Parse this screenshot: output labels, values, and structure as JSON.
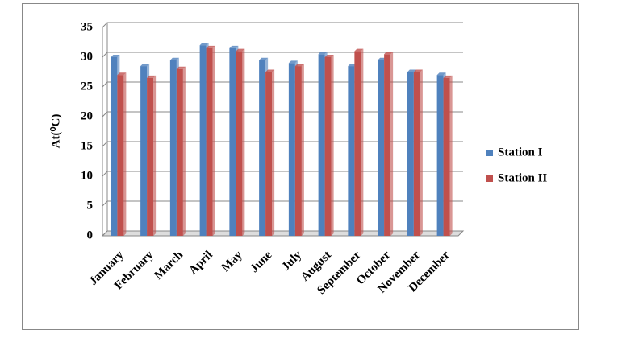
{
  "chart_data": {
    "type": "bar",
    "y_label": "At(⁰C)",
    "categories": [
      "January",
      "February",
      "March",
      "April",
      "May",
      "June",
      "July",
      "August",
      "September",
      "October",
      "November",
      "December"
    ],
    "series": [
      {
        "name": "Station I",
        "color": "#4f81bd",
        "values": [
          30,
          28.5,
          29.5,
          32,
          31.5,
          29.5,
          29,
          30.5,
          28.5,
          29.5,
          27.5,
          27
        ]
      },
      {
        "name": "Station II",
        "color": "#c0504d",
        "values": [
          27,
          26.5,
          28,
          31.5,
          31,
          27.5,
          28.5,
          30,
          31,
          30.5,
          27.5,
          26.5
        ]
      }
    ],
    "ylim": [
      0,
      35
    ],
    "yticks": [
      0,
      5,
      10,
      15,
      20,
      25,
      30,
      35
    ],
    "grid": true,
    "legend": "right"
  }
}
